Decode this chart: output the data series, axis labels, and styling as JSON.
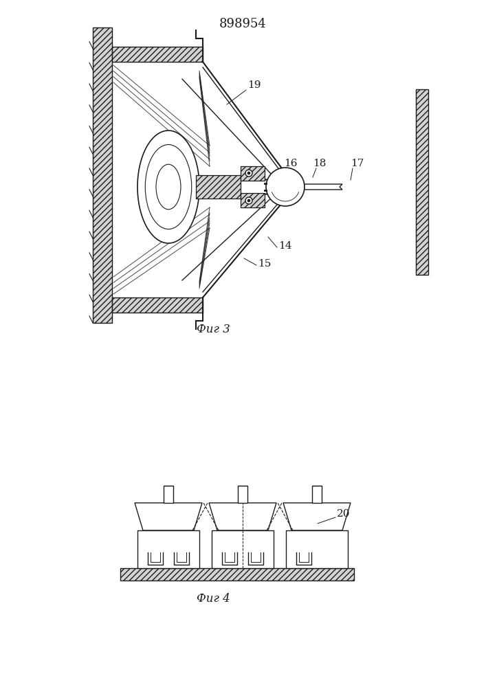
{
  "title": "898954",
  "title_fontsize": 13,
  "fig3_label": "Фиг 3",
  "fig4_label": "Фиг 4",
  "label_fontsize": 12,
  "bg_color": "#ffffff",
  "line_color": "#1a1a1a"
}
